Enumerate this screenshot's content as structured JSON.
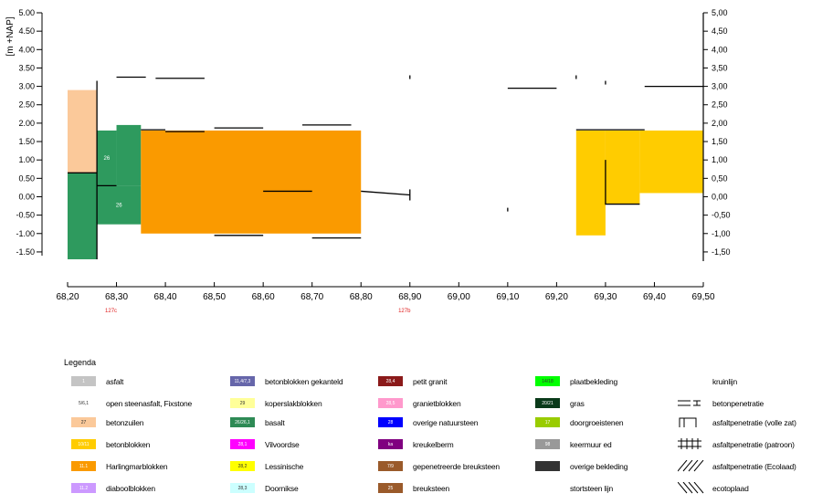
{
  "chart_data": {
    "type": "profile",
    "ylabel": "[m +NAP]",
    "xlim": [
      68.2,
      69.5
    ],
    "ylim": [
      -1.75,
      5.0
    ],
    "y_ticks_left": [
      "5.00",
      "4.50",
      "4.00",
      "3.50",
      "3.00",
      "2.50",
      "2.00",
      "1.50",
      "1.00",
      "0.50",
      "0.00",
      "-0.50",
      "-1.00",
      "-1.50"
    ],
    "y_ticks_right": [
      "5,00",
      "4,50",
      "4,00",
      "3,50",
      "3,00",
      "2,50",
      "2,00",
      "1,50",
      "1,00",
      "0,50",
      "0,00",
      "-0,50",
      "-1,00",
      "-1,50"
    ],
    "y_tick_values": [
      5.0,
      4.5,
      4.0,
      3.5,
      3.0,
      2.5,
      2.0,
      1.5,
      1.0,
      0.5,
      0.0,
      -0.5,
      -1.0,
      -1.5
    ],
    "x_ticks": [
      "68,20",
      "68,30",
      "68,40",
      "68,50",
      "68,60",
      "68,70",
      "68,80",
      "68,90",
      "69,00",
      "69,10",
      "69,20",
      "69,30",
      "69,40",
      "69,50"
    ],
    "x_tick_values": [
      68.2,
      68.3,
      68.4,
      68.5,
      68.6,
      68.7,
      68.8,
      68.9,
      69.0,
      69.1,
      69.2,
      69.3,
      69.4,
      69.5
    ],
    "section_markers": [
      {
        "x": 68.3,
        "label": "127c",
        "color": "#e02020"
      },
      {
        "x": 68.9,
        "label": "127b",
        "color": "#e02020"
      }
    ],
    "blocks": [
      {
        "x0": 68.2,
        "x1": 68.26,
        "y0": 0.65,
        "y1": 2.9,
        "color": "#fbc99a",
        "label": ""
      },
      {
        "x0": 68.2,
        "x1": 68.26,
        "y0": -1.7,
        "y1": 0.65,
        "color": "#2e9a5e",
        "label": ""
      },
      {
        "x0": 68.26,
        "x1": 68.3,
        "y0": 0.3,
        "y1": 1.8,
        "color": "#2e9a5e",
        "label": "26"
      },
      {
        "x0": 68.3,
        "x1": 68.35,
        "y0": 0.3,
        "y1": 1.95,
        "color": "#2e9a5e",
        "label": ""
      },
      {
        "x0": 68.26,
        "x1": 68.35,
        "y0": -0.75,
        "y1": 0.3,
        "color": "#2e9a5e",
        "label": "26"
      },
      {
        "x0": 68.35,
        "x1": 68.8,
        "y0": -1.0,
        "y1": 1.8,
        "color": "#fa9a00",
        "label": ""
      },
      {
        "x0": 69.24,
        "x1": 69.3,
        "y0": -1.05,
        "y1": 1.8,
        "color": "#ffcc00",
        "label": ""
      },
      {
        "x0": 69.3,
        "x1": 69.37,
        "y0": -0.2,
        "y1": 1.8,
        "color": "#ffcc00",
        "label": ""
      },
      {
        "x0": 69.37,
        "x1": 69.5,
        "y0": 0.1,
        "y1": 1.8,
        "color": "#ffcc00",
        "label": ""
      }
    ],
    "lines": [
      {
        "points": [
          [
            68.26,
            3.15
          ],
          [
            68.26,
            -1.7
          ]
        ]
      },
      {
        "points": [
          [
            68.2,
            0.65
          ],
          [
            68.26,
            0.65
          ]
        ]
      },
      {
        "points": [
          [
            68.26,
            0.3
          ],
          [
            68.3,
            0.3
          ]
        ]
      },
      {
        "points": [
          [
            68.3,
            3.25
          ],
          [
            68.36,
            3.25
          ]
        ]
      },
      {
        "points": [
          [
            68.38,
            3.22
          ],
          [
            68.48,
            3.22
          ]
        ]
      },
      {
        "points": [
          [
            68.35,
            1.82
          ],
          [
            68.4,
            1.82
          ]
        ]
      },
      {
        "points": [
          [
            68.4,
            1.77
          ],
          [
            68.48,
            1.77
          ]
        ]
      },
      {
        "points": [
          [
            68.5,
            1.87
          ],
          [
            68.6,
            1.87
          ]
        ]
      },
      {
        "points": [
          [
            68.68,
            1.95
          ],
          [
            68.78,
            1.95
          ]
        ]
      },
      {
        "points": [
          [
            68.6,
            0.15
          ],
          [
            68.7,
            0.15
          ]
        ]
      },
      {
        "points": [
          [
            68.5,
            -1.05
          ],
          [
            68.6,
            -1.05
          ]
        ]
      },
      {
        "points": [
          [
            68.7,
            -1.12
          ],
          [
            68.8,
            -1.12
          ]
        ]
      },
      {
        "points": [
          [
            68.8,
            0.15
          ],
          [
            68.9,
            0.05
          ]
        ]
      },
      {
        "points": [
          [
            68.9,
            0.2
          ],
          [
            68.9,
            -0.1
          ]
        ]
      },
      {
        "points": [
          [
            68.9,
            3.3
          ],
          [
            68.9,
            3.2
          ]
        ]
      },
      {
        "points": [
          [
            69.1,
            2.95
          ],
          [
            69.2,
            2.95
          ]
        ]
      },
      {
        "points": [
          [
            69.1,
            -0.3
          ],
          [
            69.1,
            -0.4
          ]
        ]
      },
      {
        "points": [
          [
            69.24,
            3.3
          ],
          [
            69.24,
            3.2
          ]
        ]
      },
      {
        "points": [
          [
            69.3,
            3.15
          ],
          [
            69.3,
            3.05
          ]
        ]
      },
      {
        "points": [
          [
            69.38,
            3.0
          ],
          [
            69.5,
            3.0
          ]
        ]
      },
      {
        "points": [
          [
            69.24,
            1.82
          ],
          [
            69.38,
            1.82
          ]
        ]
      },
      {
        "points": [
          [
            69.3,
            1.0
          ],
          [
            69.3,
            -0.2
          ],
          [
            69.37,
            -0.2
          ]
        ]
      }
    ]
  },
  "legend": {
    "title": "Legenda",
    "items": [
      {
        "code": "1",
        "label": "asfalt",
        "color": "#c4c4c4",
        "dark": false
      },
      {
        "code": "5/6,1",
        "label": "open steenasfalt, Fixstone",
        "color": "#ffffff",
        "dark": true
      },
      {
        "code": "27",
        "label": "betonzuilen",
        "color": "#fbc99a",
        "dark": true
      },
      {
        "code": "10/11",
        "label": "betonblokken",
        "color": "#ffcc00",
        "dark": false
      },
      {
        "code": "11.1",
        "label": "Harlingmarblokken",
        "color": "#fa9a00",
        "dark": false
      },
      {
        "code": "11.2",
        "label": "diaboolblokken",
        "color": "#cc99ff",
        "dark": false
      },
      {
        "code": "11,4/7,3",
        "label": "betonblokken gekanteld",
        "color": "#6666aa",
        "dark": false
      },
      {
        "code": "29",
        "label": "koperslakblokken",
        "color": "#ffff99",
        "dark": true
      },
      {
        "code": "26/26,1",
        "label": "basalt",
        "color": "#2e8a55",
        "dark": false
      },
      {
        "code": "28,1",
        "label": "Vilvoordse",
        "color": "#ff00ff",
        "dark": false
      },
      {
        "code": "28,2",
        "label": "Lessinische",
        "color": "#ffff00",
        "dark": true
      },
      {
        "code": "28,3",
        "label": "Doornikse",
        "color": "#ccffff",
        "dark": true
      },
      {
        "code": "28,4",
        "label": "petit granit",
        "color": "#8b1a1a",
        "dark": false
      },
      {
        "code": "28,5",
        "label": "granietblokken",
        "color": "#ff99cc",
        "dark": false
      },
      {
        "code": "28",
        "label": "overige natuursteen",
        "color": "#0000ff",
        "dark": false
      },
      {
        "code": "ka",
        "label": "kreukelberm",
        "color": "#800080",
        "dark": false
      },
      {
        "code": "7/9",
        "label": "gepenetreerde breuksteen",
        "color": "#9a5a2a",
        "dark": false
      },
      {
        "code": "25",
        "label": "breuksteen",
        "color": "#9a5a2a",
        "dark": false
      },
      {
        "code": "14/18",
        "label": "plaatbekleding",
        "color": "#00ff00",
        "dark": true
      },
      {
        "code": "20/21",
        "label": "gras",
        "color": "#0a3a1a",
        "dark": false
      },
      {
        "code": "17",
        "label": "doorgroeistenen",
        "color": "#99cc00",
        "dark": false
      },
      {
        "code": "98",
        "label": "keermuur ed",
        "color": "#999999",
        "dark": false
      },
      {
        "code": "",
        "label": "overige bekleding",
        "color": "#333333",
        "dark": false
      },
      {
        "code": "",
        "label": "stortsteen lijn",
        "color": "#ffffff",
        "dark": false
      },
      {
        "code": "",
        "label": "kruinlijn",
        "sym": "none"
      },
      {
        "code": "",
        "label": "betonpenetratie",
        "sym": "beton"
      },
      {
        "code": "",
        "label": "asfaltpenetratie (volle zat)",
        "sym": "vol"
      },
      {
        "code": "",
        "label": "asfaltpenetratie (patroon)",
        "sym": "patroon"
      },
      {
        "code": "",
        "label": "asfaltpenetratie (Ecolaad)",
        "sym": "hatch"
      },
      {
        "code": "",
        "label": "ecotoplaad",
        "sym": "crosshatch"
      }
    ]
  }
}
